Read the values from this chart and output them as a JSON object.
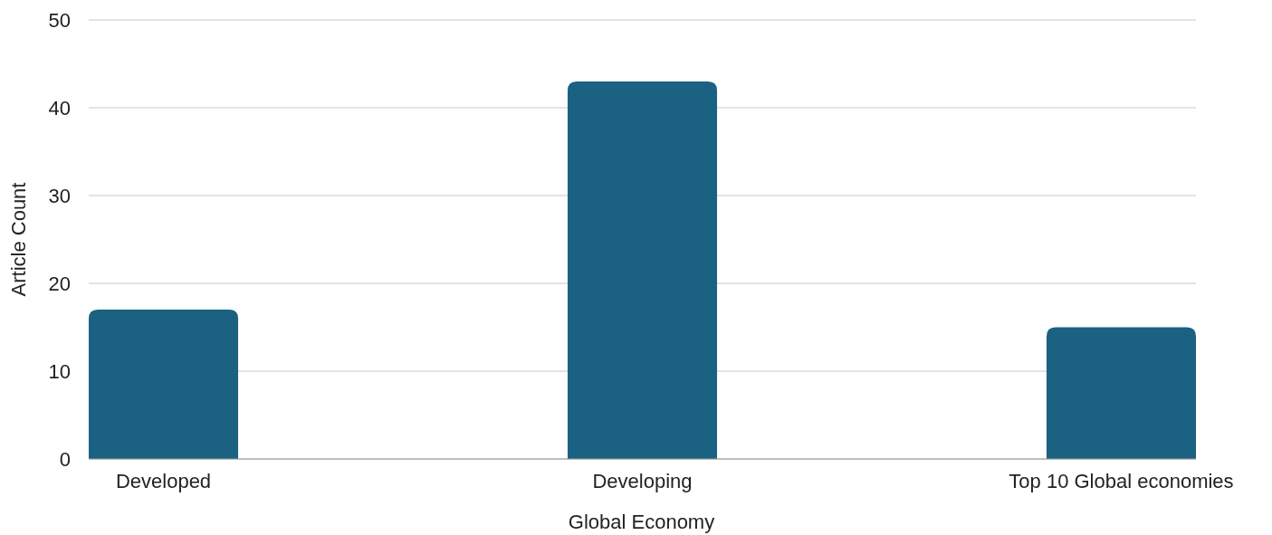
{
  "chart_data": {
    "type": "bar",
    "xlabel": "Global Economy",
    "ylabel": "Article Count",
    "categories": [
      "Developed",
      "Developing",
      "Top 10 Global economies"
    ],
    "values": [
      17,
      43,
      15
    ],
    "color": "#1a6182",
    "ylim": [
      0,
      50
    ],
    "yticks": [
      0,
      10,
      20,
      30,
      40,
      50
    ],
    "grid": "y"
  }
}
